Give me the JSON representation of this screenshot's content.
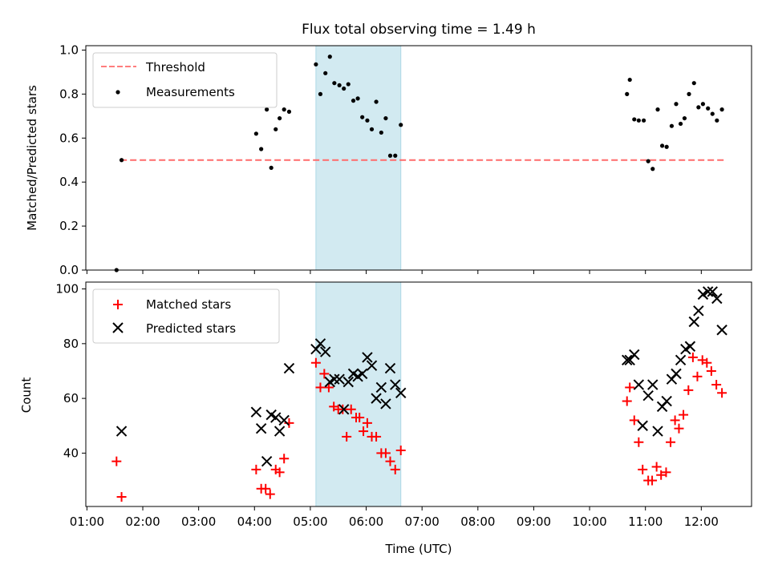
{
  "figure_title": "Flux total observing time = 1.49 h",
  "x_axis": {
    "label": "Time (UTC)",
    "tick_labels": [
      "01:00",
      "02:00",
      "03:00",
      "04:00",
      "05:00",
      "06:00",
      "07:00",
      "08:00",
      "09:00",
      "10:00",
      "11:00",
      "12:00"
    ],
    "tick_values": [
      1,
      2,
      3,
      4,
      5,
      6,
      7,
      8,
      9,
      10,
      11,
      12
    ],
    "range": [
      0.98,
      12.9
    ]
  },
  "highlight_span": {
    "start": 5.1,
    "end": 6.62,
    "color": "#add8e6"
  },
  "chart_data": [
    {
      "type": "scatter",
      "ylabel": "Matched/Predicted stars",
      "ylim": [
        0,
        1.02
      ],
      "yticks": [
        0.0,
        0.2,
        0.4,
        0.6,
        0.8,
        1.0
      ],
      "ytick_labels": [
        "0.0",
        "0.2",
        "0.4",
        "0.6",
        "0.8",
        "1.0"
      ],
      "grid": false,
      "legend": "top-left",
      "threshold": {
        "name": "Threshold",
        "y": 0.5,
        "x_range": [
          1.6,
          12.4
        ],
        "color": "#ff6b6b"
      },
      "series": [
        {
          "name": "Measurements",
          "marker": "dot",
          "color": "#000000",
          "points": [
            [
              1.53,
              0.0
            ],
            [
              1.62,
              0.5
            ],
            [
              4.03,
              0.62
            ],
            [
              4.12,
              0.55
            ],
            [
              4.22,
              0.73
            ],
            [
              4.3,
              0.465
            ],
            [
              4.38,
              0.64
            ],
            [
              4.45,
              0.69
            ],
            [
              4.53,
              0.73
            ],
            [
              4.62,
              0.72
            ],
            [
              5.1,
              0.935
            ],
            [
              5.18,
              0.8
            ],
            [
              5.27,
              0.895
            ],
            [
              5.35,
              0.97
            ],
            [
              5.43,
              0.85
            ],
            [
              5.52,
              0.84
            ],
            [
              5.6,
              0.825
            ],
            [
              5.68,
              0.845
            ],
            [
              5.77,
              0.77
            ],
            [
              5.85,
              0.78
            ],
            [
              5.93,
              0.695
            ],
            [
              6.02,
              0.68
            ],
            [
              6.1,
              0.64
            ],
            [
              6.18,
              0.765
            ],
            [
              6.27,
              0.625
            ],
            [
              6.35,
              0.69
            ],
            [
              6.43,
              0.52
            ],
            [
              6.52,
              0.52
            ],
            [
              6.62,
              0.66
            ],
            [
              10.67,
              0.8
            ],
            [
              10.72,
              0.865
            ],
            [
              10.8,
              0.685
            ],
            [
              10.88,
              0.68
            ],
            [
              10.97,
              0.68
            ],
            [
              11.05,
              0.495
            ],
            [
              11.13,
              0.46
            ],
            [
              11.22,
              0.73
            ],
            [
              11.3,
              0.565
            ],
            [
              11.38,
              0.56
            ],
            [
              11.47,
              0.655
            ],
            [
              11.55,
              0.755
            ],
            [
              11.63,
              0.665
            ],
            [
              11.7,
              0.69
            ],
            [
              11.78,
              0.8
            ],
            [
              11.87,
              0.85
            ],
            [
              11.95,
              0.74
            ],
            [
              12.03,
              0.755
            ],
            [
              12.12,
              0.735
            ],
            [
              12.2,
              0.71
            ],
            [
              12.28,
              0.68
            ],
            [
              12.37,
              0.73
            ]
          ]
        }
      ]
    },
    {
      "type": "scatter",
      "ylabel": "Count",
      "ylim": [
        20.5,
        102.5
      ],
      "yticks": [
        40,
        60,
        80,
        100
      ],
      "ytick_labels": [
        "40",
        "60",
        "80",
        "100"
      ],
      "grid": false,
      "legend": "top-left",
      "series": [
        {
          "name": "Matched stars",
          "marker": "plus",
          "color": "#ff0000",
          "points": [
            [
              1.53,
              37
            ],
            [
              1.62,
              24
            ],
            [
              4.03,
              34
            ],
            [
              4.12,
              27
            ],
            [
              4.2,
              27
            ],
            [
              4.28,
              25
            ],
            [
              4.38,
              34
            ],
            [
              4.45,
              33
            ],
            [
              4.53,
              38
            ],
            [
              4.62,
              51
            ],
            [
              5.1,
              73
            ],
            [
              5.18,
              64
            ],
            [
              5.25,
              69
            ],
            [
              5.33,
              64
            ],
            [
              5.42,
              57
            ],
            [
              5.5,
              56
            ],
            [
              5.58,
              56
            ],
            [
              5.65,
              46
            ],
            [
              5.73,
              56
            ],
            [
              5.82,
              53
            ],
            [
              5.88,
              53
            ],
            [
              5.95,
              48
            ],
            [
              6.02,
              51
            ],
            [
              6.1,
              46
            ],
            [
              6.18,
              46
            ],
            [
              6.27,
              40
            ],
            [
              6.35,
              40
            ],
            [
              6.43,
              37
            ],
            [
              6.52,
              34
            ],
            [
              6.62,
              41
            ],
            [
              10.67,
              59
            ],
            [
              10.72,
              64
            ],
            [
              10.8,
              52
            ],
            [
              10.88,
              44
            ],
            [
              10.95,
              34
            ],
            [
              11.05,
              30
            ],
            [
              11.12,
              30
            ],
            [
              11.2,
              35
            ],
            [
              11.28,
              32
            ],
            [
              11.37,
              33
            ],
            [
              11.45,
              44
            ],
            [
              11.53,
              52
            ],
            [
              11.6,
              49
            ],
            [
              11.68,
              54
            ],
            [
              11.77,
              63
            ],
            [
              11.85,
              75
            ],
            [
              11.93,
              68
            ],
            [
              12.02,
              74
            ],
            [
              12.1,
              73
            ],
            [
              12.18,
              70
            ],
            [
              12.27,
              65
            ],
            [
              12.37,
              62
            ]
          ]
        },
        {
          "name": "Predicted stars",
          "marker": "x",
          "color": "#000000",
          "points": [
            [
              1.62,
              48
            ],
            [
              4.03,
              55
            ],
            [
              4.12,
              49
            ],
            [
              4.22,
              37
            ],
            [
              4.3,
              54
            ],
            [
              4.38,
              53
            ],
            [
              4.45,
              48
            ],
            [
              4.53,
              52
            ],
            [
              4.62,
              71
            ],
            [
              5.1,
              78
            ],
            [
              5.18,
              80
            ],
            [
              5.27,
              77
            ],
            [
              5.35,
              66
            ],
            [
              5.43,
              67
            ],
            [
              5.52,
              67
            ],
            [
              5.6,
              56
            ],
            [
              5.68,
              66
            ],
            [
              5.77,
              69
            ],
            [
              5.85,
              68
            ],
            [
              5.93,
              69
            ],
            [
              6.02,
              75
            ],
            [
              6.1,
              72
            ],
            [
              6.18,
              60
            ],
            [
              6.27,
              64
            ],
            [
              6.35,
              58
            ],
            [
              6.43,
              71
            ],
            [
              6.52,
              65
            ],
            [
              6.62,
              62
            ],
            [
              10.67,
              74
            ],
            [
              10.72,
              74
            ],
            [
              10.8,
              76
            ],
            [
              10.88,
              65
            ],
            [
              10.95,
              50
            ],
            [
              11.05,
              61
            ],
            [
              11.13,
              65
            ],
            [
              11.22,
              48
            ],
            [
              11.3,
              57
            ],
            [
              11.38,
              59
            ],
            [
              11.47,
              67
            ],
            [
              11.55,
              69
            ],
            [
              11.63,
              74
            ],
            [
              11.72,
              78
            ],
            [
              11.8,
              79
            ],
            [
              11.87,
              88
            ],
            [
              11.95,
              92
            ],
            [
              12.03,
              98
            ],
            [
              12.12,
              99
            ],
            [
              12.2,
              99
            ],
            [
              12.28,
              96.5
            ],
            [
              12.37,
              85
            ]
          ]
        }
      ]
    }
  ]
}
